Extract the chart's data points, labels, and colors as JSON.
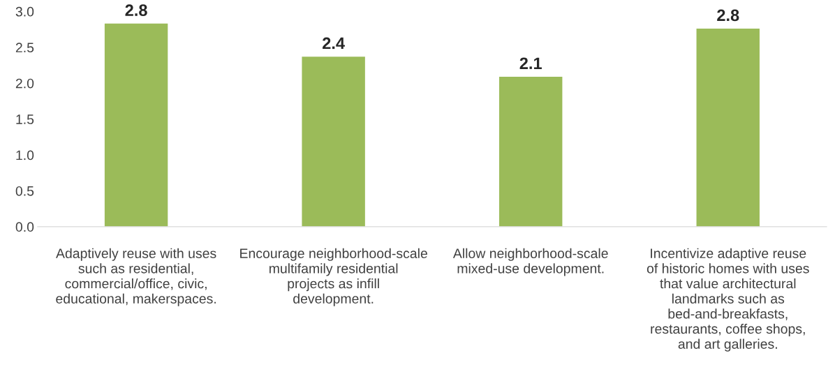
{
  "chart_data": {
    "type": "bar",
    "categories": [
      "Adaptively reuse with uses such as residential, commercial/office, civic, educational, makerspaces.",
      "Encourage neighborhood-scale multifamily residential projects as infill development.",
      "Allow neighborhood-scale mixed-use development.",
      "Incentivize adaptive reuse of historic homes with uses that value architectural landmarks such as bed-and-breakfasts, restaurants, coffee shops, and art galleries."
    ],
    "values": [
      2.83,
      2.37,
      2.09,
      2.76
    ],
    "value_labels": [
      "2.8",
      "2.4",
      "2.1",
      "2.8"
    ],
    "color": "#9bbb59",
    "ylim": [
      0,
      3.0
    ],
    "yticks": [
      {
        "value": 0,
        "label": "0.0"
      },
      {
        "value": 0.5,
        "label": "0.5"
      },
      {
        "value": 1.0,
        "label": "1.0"
      },
      {
        "value": 1.5,
        "label": "1.5"
      },
      {
        "value": 2.0,
        "label": "2.0"
      },
      {
        "value": 2.5,
        "label": "2.5"
      },
      {
        "value": 3.0,
        "label": "3.0"
      }
    ],
    "grid": false
  }
}
